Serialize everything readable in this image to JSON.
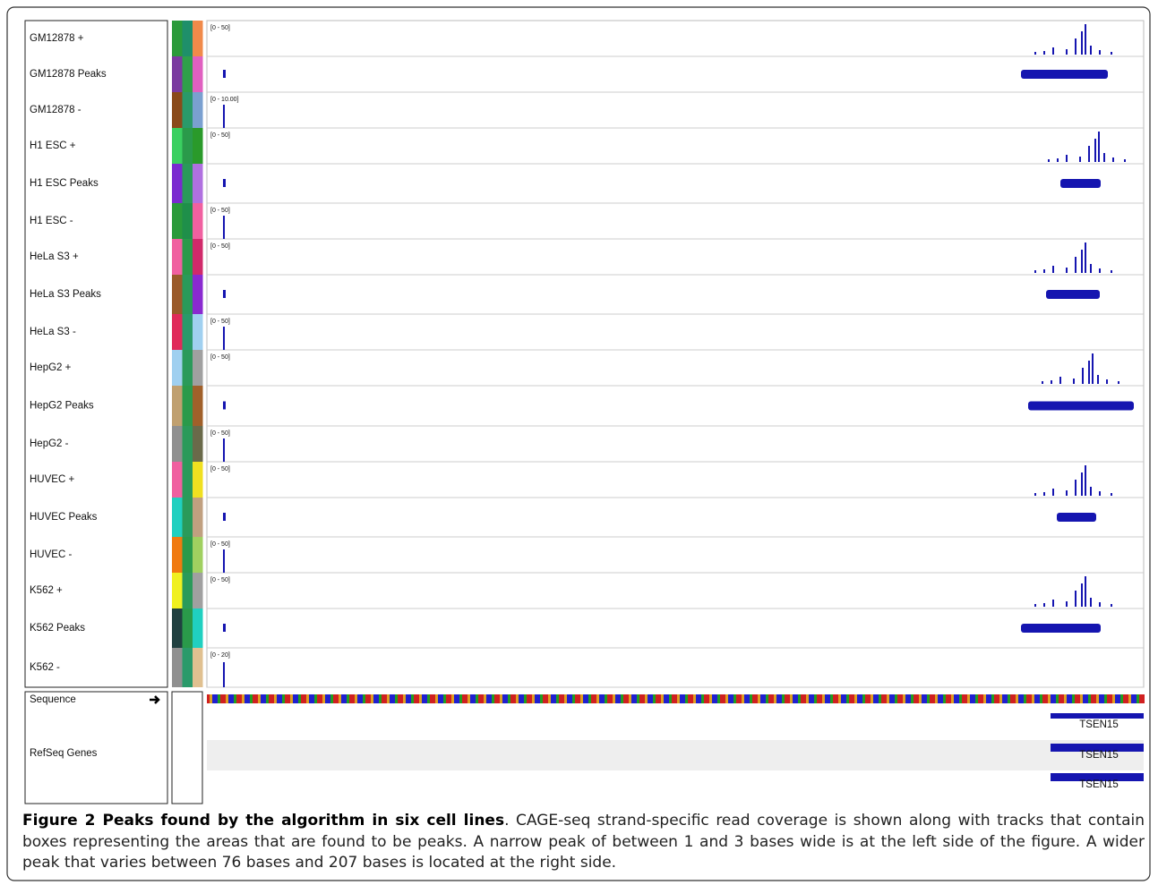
{
  "tracks": [
    {
      "name": "GM12878 +",
      "range": "[0 - 50]"
    },
    {
      "name": "GM12878 Peaks"
    },
    {
      "name": "GM12878 -",
      "range": "[0 - 10.00]"
    },
    {
      "name": "H1 ESC +",
      "range": "[0 - 50]"
    },
    {
      "name": "H1 ESC Peaks"
    },
    {
      "name": "H1 ESC -",
      "range": "[0 - 50]"
    },
    {
      "name": "HeLa S3 +",
      "range": "[0 - 50]"
    },
    {
      "name": "HeLa S3 Peaks"
    },
    {
      "name": "HeLa S3 -",
      "range": "[0 - 50]"
    },
    {
      "name": "HepG2 +",
      "range": "[0 - 50]"
    },
    {
      "name": "HepG2 Peaks"
    },
    {
      "name": "HepG2 -",
      "range": "[0 - 50]"
    },
    {
      "name": "HUVEC +",
      "range": "[0 - 50]"
    },
    {
      "name": "HUVEC Peaks"
    },
    {
      "name": "HUVEC -",
      "range": "[0 - 50]"
    },
    {
      "name": "K562 +",
      "range": "[0 - 50]"
    },
    {
      "name": "K562 Peaks"
    },
    {
      "name": "K562 -",
      "range": "[0 - 20]"
    }
  ],
  "sequence": {
    "label": "Sequence"
  },
  "refseq": {
    "label": "RefSeq Genes",
    "genes": [
      "TSEN15",
      "TSEN15",
      "TSEN15"
    ]
  },
  "caption": {
    "title": "Figure 2 Peaks found by the algorithm in six cell lines",
    "text": ". CAGE-seq strand-specific read coverage is shown along with tracks that contain boxes representing the areas that are found to be peaks. A narrow peak of between 1 and 3 bases wide is at the left side of the figure. A wider peak that varies between 76 bases and 207 bases is located at the right side."
  }
}
